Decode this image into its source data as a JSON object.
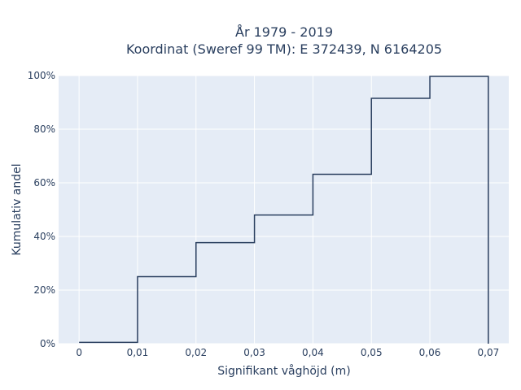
{
  "chart_data": {
    "type": "line",
    "line_shape": "step",
    "title_line1": "År 1979 - 2019",
    "title_line2": "Koordinat (Sweref 99 TM): E 372439, N 6164205",
    "xlabel": "Signifikant våghöjd (m)",
    "ylabel": "Kumulativ andel",
    "x_ticks": [
      {
        "value": 0,
        "label": "0"
      },
      {
        "value": 0.01,
        "label": "0,01"
      },
      {
        "value": 0.02,
        "label": "0,02"
      },
      {
        "value": 0.03,
        "label": "0,03"
      },
      {
        "value": 0.04,
        "label": "0,04"
      },
      {
        "value": 0.05,
        "label": "0,05"
      },
      {
        "value": 0.06,
        "label": "0,06"
      },
      {
        "value": 0.07,
        "label": "0,07"
      }
    ],
    "y_ticks": [
      {
        "value": 0,
        "label": "0%"
      },
      {
        "value": 20,
        "label": "20%"
      },
      {
        "value": 40,
        "label": "40%"
      },
      {
        "value": 60,
        "label": "60%"
      },
      {
        "value": 80,
        "label": "80%"
      },
      {
        "value": 100,
        "label": "100%"
      }
    ],
    "xlim": [
      -0.0035,
      0.0735
    ],
    "ylim": [
      0,
      100
    ],
    "x": [
      0,
      0.01,
      0.02,
      0.03,
      0.04,
      0.05,
      0.06,
      0.07
    ],
    "y": [
      0.5,
      25,
      37.7,
      48,
      63.2,
      91.5,
      99.7,
      0
    ],
    "grid": true,
    "colors": {
      "plot_bg": "#e5ecf6",
      "grid": "#ffffff",
      "line": "#2a3f5f",
      "text": "#2a3f5f"
    }
  }
}
